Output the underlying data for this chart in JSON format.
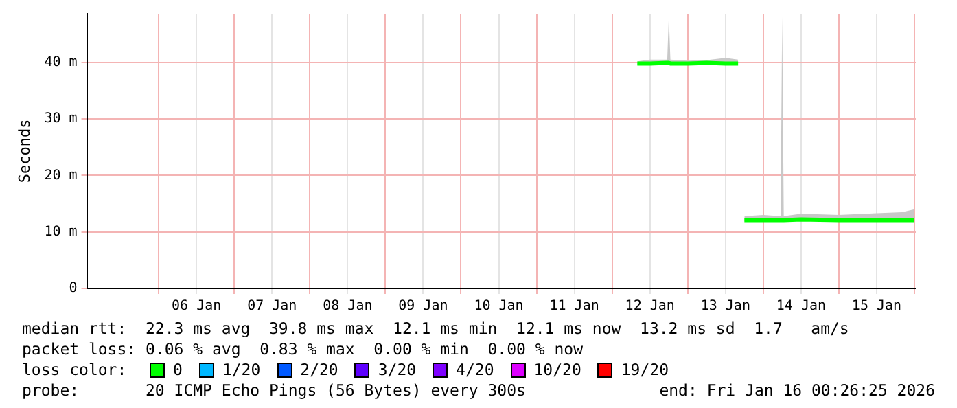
{
  "chart_data": {
    "type": "line",
    "ylabel": "Seconds",
    "legend_title": "loss color:",
    "legend": "bottom",
    "grid": true,
    "marker": "none",
    "line_style": "solid",
    "x": [
      "2026-01-12T08:00",
      "2026-01-12T12:00",
      "2026-01-12T17:30",
      "2026-01-12T18:00",
      "2026-01-12T18:30",
      "2026-01-13T00:00",
      "2026-01-13T06:00",
      "2026-01-13T12:00",
      "2026-01-13T16:00",
      "2026-01-13T17:00",
      "2026-01-13T18:00",
      "2026-01-14T00:00",
      "2026-01-14T05:30",
      "2026-01-14T06:00",
      "2026-01-14T06:30",
      "2026-01-14T12:00",
      "2026-01-15T00:00",
      "2026-01-15T12:00",
      "2026-01-15T20:00",
      "2026-01-16T00:00"
    ],
    "xlim": [
      "2026-01-05T01:12",
      "2026-01-16T00:26"
    ],
    "xticks": [
      {
        "value": "2026-01-06T00:00",
        "label": null
      },
      {
        "value": "2026-01-06T12:00",
        "label": "06 Jan"
      },
      {
        "value": "2026-01-07T00:00",
        "label": null
      },
      {
        "value": "2026-01-07T12:00",
        "label": "07 Jan"
      },
      {
        "value": "2026-01-08T00:00",
        "label": null
      },
      {
        "value": "2026-01-08T12:00",
        "label": "08 Jan"
      },
      {
        "value": "2026-01-09T00:00",
        "label": null
      },
      {
        "value": "2026-01-09T12:00",
        "label": "09 Jan"
      },
      {
        "value": "2026-01-10T00:00",
        "label": null
      },
      {
        "value": "2026-01-10T12:00",
        "label": "10 Jan"
      },
      {
        "value": "2026-01-11T00:00",
        "label": null
      },
      {
        "value": "2026-01-11T12:00",
        "label": "11 Jan"
      },
      {
        "value": "2026-01-12T00:00",
        "label": null
      },
      {
        "value": "2026-01-12T12:00",
        "label": "12 Jan"
      },
      {
        "value": "2026-01-13T00:00",
        "label": null
      },
      {
        "value": "2026-01-13T12:00",
        "label": "13 Jan"
      },
      {
        "value": "2026-01-14T00:00",
        "label": null
      },
      {
        "value": "2026-01-14T12:00",
        "label": "14 Jan"
      },
      {
        "value": "2026-01-15T00:00",
        "label": null
      },
      {
        "value": "2026-01-15T12:00",
        "label": "15 Jan"
      },
      {
        "value": "2026-01-16T00:00",
        "label": null
      }
    ],
    "ylim": [
      0,
      48.6
    ],
    "yticks": [
      0,
      {
        "value": 10,
        "label": "10 m"
      },
      {
        "value": 20,
        "label": "20 m"
      },
      {
        "value": 30,
        "label": "30 m"
      },
      {
        "value": 40,
        "label": "40 m"
      }
    ],
    "series": [
      {
        "name": "0",
        "color": "#00ff00",
        "values": [
          39.8,
          39.8,
          39.9,
          39.9,
          39.8,
          39.8,
          39.9,
          39.8,
          39.8,
          null,
          12.1,
          12.1,
          12.1,
          12.1,
          12.1,
          12.2,
          12.1,
          12.1,
          12.1,
          12.1
        ],
        "lower": [
          39.6,
          39.6,
          39.7,
          39.7,
          39.6,
          39.6,
          39.7,
          39.6,
          39.6,
          null,
          11.9,
          11.9,
          11.9,
          11.9,
          11.9,
          11.9,
          11.9,
          11.9,
          11.9,
          11.9
        ],
        "upper": [
          40.2,
          40.5,
          40.5,
          48.2,
          40.5,
          40.3,
          40.4,
          40.8,
          40.5,
          null,
          12.8,
          13,
          12.8,
          48.2,
          12.8,
          13.2,
          13,
          13.3,
          13.5,
          14
        ]
      },
      {
        "name": "1/20",
        "color": "#00b8ff",
        "values": [
          null,
          null,
          null,
          null,
          null,
          null,
          null,
          null,
          null,
          null,
          null,
          null,
          null,
          null,
          null,
          null,
          null,
          null,
          null,
          null
        ]
      },
      {
        "name": "2/20",
        "color": "#0059ff",
        "values": [
          null,
          null,
          null,
          null,
          null,
          null,
          null,
          null,
          null,
          null,
          null,
          null,
          null,
          null,
          null,
          null,
          null,
          null,
          null,
          null
        ]
      },
      {
        "name": "3/20",
        "color": "#5e00ff",
        "values": [
          null,
          null,
          null,
          null,
          null,
          null,
          null,
          null,
          null,
          null,
          null,
          null,
          null,
          null,
          null,
          null,
          null,
          null,
          null,
          null
        ]
      },
      {
        "name": "4/20",
        "color": "#7e00ff",
        "values": [
          null,
          null,
          null,
          null,
          null,
          null,
          null,
          null,
          null,
          null,
          null,
          null,
          null,
          null,
          null,
          null,
          null,
          null,
          null,
          null
        ]
      },
      {
        "name": "10/20",
        "color": "#dd00ff",
        "values": [
          null,
          null,
          null,
          null,
          null,
          null,
          null,
          null,
          null,
          null,
          null,
          null,
          null,
          null,
          null,
          null,
          null,
          null,
          null,
          null
        ]
      },
      {
        "name": "19/20",
        "color": "#ff0000",
        "values": [
          null,
          null,
          null,
          null,
          null,
          null,
          null,
          null,
          null,
          null,
          null,
          null,
          null,
          null,
          null,
          null,
          null,
          null,
          null,
          null
        ]
      }
    ],
    "annotations": [
      "median rtt:  22.3 ms avg  39.8 ms max  12.1 ms min  12.1 ms now  13.2 ms sd  1.7   am/s",
      "packet loss: 0.06 % avg  0.83 % max  0.00 % min  0.00 % now",
      "probe:       20 ICMP Echo Pings (56 Bytes) every 300s",
      "end: Fri Jan 16 00:26:25 2026"
    ]
  }
}
